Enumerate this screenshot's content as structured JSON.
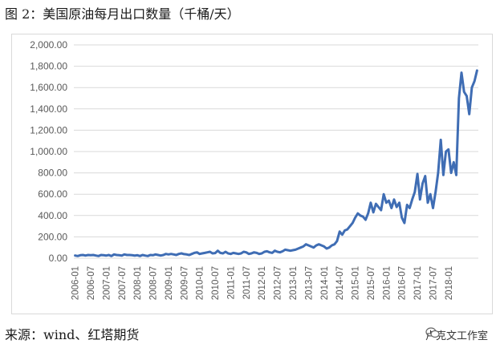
{
  "figure": {
    "title": "图 2：美国原油每月出口数量（千桶/天）",
    "source": "来源：wind、红塔期货",
    "watermark": "卢克文工作室",
    "watermark_icon": "wechat-icon"
  },
  "colors": {
    "line": "#3f6db4",
    "grid": "#d9d9d9",
    "text": "#595959"
  },
  "chart_data": {
    "type": "line",
    "title": "美国原油每月出口数量（千桶/天）",
    "xlabel": "",
    "ylabel": "",
    "ylim": [
      0,
      2000
    ],
    "yticks": [
      "0.00",
      "200.00",
      "400.00",
      "600.00",
      "800.00",
      "1,000.00",
      "1,200.00",
      "1,400.00",
      "1,600.00",
      "1,800.00",
      "2,000.00"
    ],
    "ytick_values": [
      0,
      200,
      400,
      600,
      800,
      1000,
      1200,
      1400,
      1600,
      1800,
      2000
    ],
    "grid": true,
    "xtick_labels": [
      "2006-01",
      "2006-07",
      "2007-01",
      "2007-07",
      "2008-01",
      "2008-07",
      "2009-01",
      "2009-07",
      "2010-01",
      "2010-07",
      "2011-01",
      "2011-07",
      "2012-01",
      "2012-07",
      "2013-01",
      "2013-07",
      "2014-01",
      "2014-07",
      "2015-01",
      "2015-07",
      "2016-01",
      "2016-07",
      "2017-01",
      "2017-07",
      "2018-01"
    ],
    "series": [
      {
        "values": [
          25,
          20,
          28,
          30,
          25,
          30,
          28,
          30,
          25,
          20,
          30,
          28,
          25,
          30,
          20,
          35,
          30,
          28,
          25,
          35,
          30,
          30,
          28,
          25,
          28,
          20,
          30,
          25,
          20,
          30,
          28,
          35,
          30,
          25,
          30,
          40,
          35,
          40,
          35,
          30,
          40,
          45,
          38,
          35,
          30,
          40,
          50,
          55,
          40,
          45,
          50,
          55,
          60,
          45,
          48,
          70,
          50,
          45,
          60,
          45,
          40,
          50,
          45,
          40,
          45,
          60,
          55,
          40,
          45,
          55,
          50,
          40,
          45,
          60,
          65,
          55,
          50,
          70,
          60,
          55,
          65,
          80,
          75,
          70,
          75,
          80,
          90,
          100,
          110,
          130,
          120,
          110,
          100,
          120,
          130,
          120,
          110,
          90,
          100,
          120,
          130,
          160,
          250,
          220,
          260,
          270,
          300,
          330,
          380,
          420,
          400,
          390,
          360,
          420,
          520,
          430,
          510,
          480,
          450,
          600,
          520,
          540,
          470,
          550,
          480,
          520,
          380,
          330,
          500,
          470,
          550,
          620,
          790,
          550,
          700,
          770,
          520,
          600,
          470,
          620,
          800,
          1110,
          780,
          1000,
          1020,
          800,
          900,
          780,
          1500,
          1740,
          1560,
          1520,
          1350,
          1600,
          1660,
          1760
        ]
      }
    ]
  }
}
